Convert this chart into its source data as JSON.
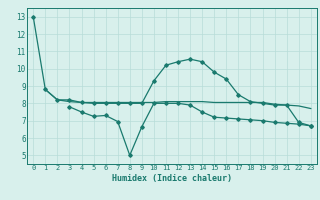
{
  "line1_x": [
    0,
    1,
    2,
    3,
    4,
    5,
    6,
    7,
    8,
    9,
    10,
    11,
    12,
    13,
    14,
    15,
    16,
    17,
    18,
    19,
    20,
    21,
    22,
    23
  ],
  "line1_y": [
    13.0,
    8.8,
    8.2,
    8.2,
    8.05,
    8.0,
    8.0,
    8.0,
    8.0,
    8.0,
    9.3,
    10.2,
    10.4,
    10.55,
    10.4,
    9.8,
    9.4,
    8.5,
    8.1,
    8.0,
    7.9,
    7.9,
    6.9,
    6.7
  ],
  "line2_x": [
    3,
    4,
    5,
    6,
    7,
    8,
    9,
    10,
    11,
    12,
    13,
    14,
    15,
    16,
    17,
    18,
    19,
    20,
    21,
    22,
    23
  ],
  "line2_y": [
    7.8,
    7.5,
    7.25,
    7.3,
    6.95,
    5.0,
    6.65,
    8.0,
    8.0,
    8.0,
    7.9,
    7.5,
    7.2,
    7.15,
    7.1,
    7.05,
    7.0,
    6.9,
    6.85,
    6.8,
    6.7
  ],
  "line3_x": [
    1,
    2,
    3,
    4,
    5,
    6,
    7,
    8,
    9,
    10,
    11,
    12,
    13,
    14,
    15,
    16,
    17,
    18,
    19,
    20,
    21,
    22,
    23
  ],
  "line3_y": [
    8.8,
    8.2,
    8.1,
    8.05,
    8.05,
    8.05,
    8.05,
    8.05,
    8.05,
    8.05,
    8.1,
    8.1,
    8.1,
    8.1,
    8.05,
    8.05,
    8.05,
    8.05,
    8.05,
    7.95,
    7.9,
    7.85,
    7.7
  ],
  "color": "#1a7a6e",
  "bg_color": "#d8f0ec",
  "grid_color": "#b8ddd8",
  "xlabel": "Humidex (Indice chaleur)",
  "ylim": [
    4.5,
    13.5
  ],
  "xlim": [
    -0.5,
    23.5
  ],
  "yticks": [
    5,
    6,
    7,
    8,
    9,
    10,
    11,
    12,
    13
  ],
  "xticks": [
    0,
    1,
    2,
    3,
    4,
    5,
    6,
    7,
    8,
    9,
    10,
    11,
    12,
    13,
    14,
    15,
    16,
    17,
    18,
    19,
    20,
    21,
    22,
    23
  ],
  "xlabel_fontsize": 6.0,
  "tick_fontsize": 5.0
}
